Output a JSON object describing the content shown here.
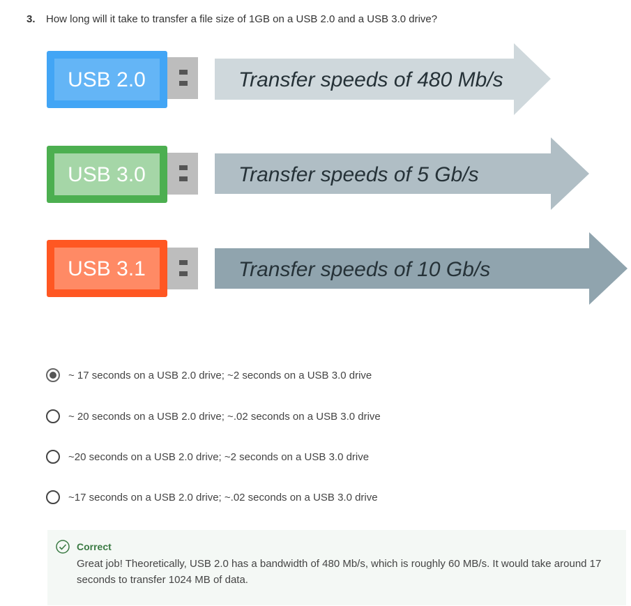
{
  "question": {
    "number": "3.",
    "text": "How long will it take to transfer a file size of 1GB on a USB 2.0 and a USB 3.0 drive?"
  },
  "illustration": {
    "drives": [
      {
        "label": "USB 2.0",
        "speed": "Transfer speeds of 480 Mb/s",
        "body_color": "#42a5f5",
        "label_bg": "#64b5f6",
        "arrow_color": "#cfd8dc"
      },
      {
        "label": "USB 3.0",
        "speed": "Transfer speeds of 5 Gb/s",
        "body_color": "#4caf50",
        "label_bg": "#a5d6a7",
        "arrow_color": "#b0bec5"
      },
      {
        "label": "USB 3.1",
        "speed": "Transfer speeds of 10 Gb/s",
        "body_color": "#ff5722",
        "label_bg": "#ff8a65",
        "arrow_color": "#90a4ae"
      }
    ],
    "connector_color": "#bdbdbd"
  },
  "options": [
    {
      "label": "~ 17 seconds on a USB 2.0 drive; ~2 seconds on a USB 3.0 drive",
      "selected": true
    },
    {
      "label": "~ 20 seconds on a USB 2.0 drive; ~.02 seconds on a USB 3.0 drive",
      "selected": false
    },
    {
      "label": "~20 seconds on a USB 2.0 drive; ~2 seconds on a USB 3.0 drive",
      "selected": false
    },
    {
      "label": "~17 seconds on a USB 2.0 drive; ~.02 seconds on a USB 3.0 drive",
      "selected": false
    }
  ],
  "feedback": {
    "title": "Correct",
    "text": "Great job! Theoretically, USB 2.0 has a bandwidth of 480 Mb/s, which is roughly 60 MB/s. It would take around 17 seconds to transfer 1024 MB of data.",
    "color": "#3a7a43"
  }
}
